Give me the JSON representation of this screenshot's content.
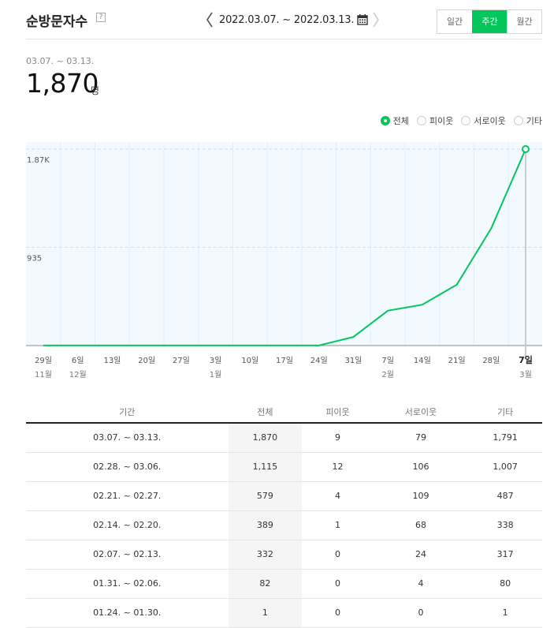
{
  "header": {
    "title": "순방문자수",
    "help": "?",
    "date_range": "2022.03.07. ~ 2022.03.13.",
    "tabs": [
      {
        "label": "일간",
        "active": false
      },
      {
        "label": "주간",
        "active": true
      },
      {
        "label": "월간",
        "active": false
      }
    ]
  },
  "summary": {
    "date": "03.07. ~ 03.13.",
    "value": "1,870",
    "unit": "명"
  },
  "legend": [
    {
      "label": "전체",
      "selected": true
    },
    {
      "label": "피이웃",
      "selected": false
    },
    {
      "label": "서로이웃",
      "selected": false
    },
    {
      "label": "기타",
      "selected": false
    }
  ],
  "colors": {
    "accent": "#03c75a",
    "chart_bg": "#f2f9ff"
  },
  "chart_data": {
    "type": "line",
    "x": [
      "29일",
      "6일",
      "13일",
      "20일",
      "27일",
      "3일",
      "10일",
      "17일",
      "24일",
      "31일",
      "7일",
      "14일",
      "21일",
      "28일",
      "7일"
    ],
    "x_month": [
      "11월",
      "12월",
      "",
      "",
      "",
      "1월",
      "",
      "",
      "",
      "",
      "2월",
      "",
      "",
      "",
      "3월"
    ],
    "y_ticks": [
      "1.87K",
      "935"
    ],
    "ylim": [
      0,
      1870
    ],
    "series": [
      {
        "values": [
          1,
          1,
          1,
          1,
          1,
          1,
          1,
          1,
          1,
          82,
          332,
          389,
          579,
          1115,
          1870
        ]
      }
    ],
    "highlight_index": 14
  },
  "table": {
    "headers": [
      "기간",
      "전체",
      "피이웃",
      "서로이웃",
      "기타"
    ],
    "rows": [
      [
        "03.07. ~ 03.13.",
        "1,870",
        "9",
        "79",
        "1,791"
      ],
      [
        "02.28. ~ 03.06.",
        "1,115",
        "12",
        "106",
        "1,007"
      ],
      [
        "02.21. ~ 02.27.",
        "579",
        "4",
        "109",
        "487"
      ],
      [
        "02.14. ~ 02.20.",
        "389",
        "1",
        "68",
        "338"
      ],
      [
        "02.07. ~ 02.13.",
        "332",
        "0",
        "24",
        "317"
      ],
      [
        "01.31. ~ 02.06.",
        "82",
        "0",
        "4",
        "80"
      ],
      [
        "01.24. ~ 01.30.",
        "1",
        "0",
        "0",
        "1"
      ]
    ]
  }
}
